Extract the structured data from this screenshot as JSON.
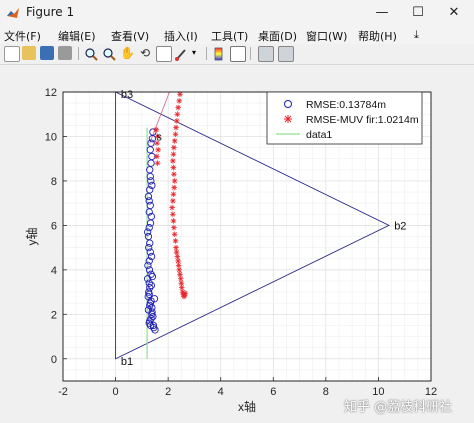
{
  "window": {
    "title": "Figure 1",
    "minimize": "—",
    "maximize": "☐",
    "close": "✕"
  },
  "menu": [
    "文件(F)",
    "编辑(E)",
    "查看(V)",
    "插入(I)",
    "工具(T)",
    "桌面(D)",
    "窗口(W)",
    "帮助(H)"
  ],
  "toolbar": [
    "new-figure",
    "open-file",
    "save",
    "print",
    "zoom-in",
    "zoom-out",
    "pan",
    "rotate-3d",
    "data-cursor",
    "brush",
    "insert-colorbar",
    "insert-legend",
    "hide-plot-tools",
    "show-plot-tools"
  ],
  "watermark": "知乎 @荔枝科研社",
  "chart_data": {
    "type": "line",
    "title": "",
    "xlabel": "x轴",
    "ylabel": "y轴",
    "xlim": [
      -2,
      12
    ],
    "ylim": [
      -1,
      12
    ],
    "xticks": [
      "-2",
      "0",
      "2",
      "4",
      "6",
      "8",
      "10",
      "12"
    ],
    "yticks": [
      "0",
      "2",
      "4",
      "6",
      "8",
      "10",
      "12"
    ],
    "grid": true,
    "legend_position": "top-right",
    "legend": [
      {
        "label": "RMSE:0.13784m",
        "marker": "circle",
        "color": "#1f1fb4"
      },
      {
        "label": "RMSE-MUV fir:1.0214m",
        "marker": "asterisk",
        "color": "#e8272d"
      },
      {
        "label": "data1",
        "marker": "line",
        "color": "#8fe08f"
      }
    ],
    "annotations": [
      {
        "text": "b1",
        "x": 0.2,
        "y": -0.1
      },
      {
        "text": "b2",
        "x": 10.6,
        "y": 6.0
      },
      {
        "text": "b3",
        "x": 0.2,
        "y": 11.9
      },
      {
        "text": "s",
        "x": 1.55,
        "y": 10.0
      }
    ],
    "anchors": {
      "b1": [
        0,
        0
      ],
      "b2": [
        10.4,
        6
      ],
      "b3": [
        0,
        12
      ]
    },
    "green_line": {
      "x": [
        1.2,
        1.2
      ],
      "y": [
        0,
        10.4
      ]
    },
    "pink_line": {
      "x": [
        1.3,
        2.05
      ],
      "y": [
        9.7,
        12
      ]
    },
    "series": [
      {
        "name": "RMSE:0.13784m",
        "marker": "circle",
        "color": "#1f1fb4",
        "x": [
          1.42,
          1.4,
          1.35,
          1.32,
          1.38,
          1.35,
          1.3,
          1.32,
          1.34,
          1.38,
          1.3,
          1.25,
          1.28,
          1.32,
          1.28,
          1.36,
          1.33,
          1.28,
          1.22,
          1.25,
          1.3,
          1.26,
          1.32,
          1.37,
          1.28,
          1.23,
          1.29,
          1.35,
          1.22,
          1.28,
          1.3,
          1.26,
          1.24,
          1.35,
          1.3,
          1.25,
          1.38,
          1.35,
          1.3,
          1.28,
          1.33,
          1.39,
          1.32,
          1.28,
          1.36,
          1.4,
          1.45,
          1.42,
          1.38,
          1.48,
          1.44,
          1.5
        ],
        "y": [
          10.2,
          9.9,
          9.7,
          9.4,
          9.1,
          8.8,
          8.5,
          8.2,
          8.0,
          7.8,
          7.6,
          7.3,
          7.1,
          6.9,
          6.6,
          6.4,
          6.1,
          5.9,
          5.7,
          5.5,
          5.2,
          5.0,
          4.8,
          4.6,
          4.4,
          4.2,
          4.0,
          3.8,
          3.6,
          3.4,
          3.2,
          3.0,
          2.8,
          2.6,
          2.4,
          2.2,
          2.0,
          1.8,
          1.7,
          1.6,
          1.5,
          2.1,
          2.5,
          2.9,
          3.3,
          3.7,
          1.4,
          1.9,
          2.3,
          2.7,
          1.5,
          1.3
        ]
      },
      {
        "name": "RMSE-MUV fir:1.0214m",
        "marker": "asterisk",
        "color": "#e8272d",
        "x": [
          2.45,
          2.42,
          2.38,
          2.35,
          2.33,
          2.3,
          2.28,
          2.25,
          2.22,
          2.2,
          2.18,
          2.2,
          2.22,
          2.25,
          2.23,
          2.2,
          2.18,
          2.15,
          2.18,
          2.2,
          2.22,
          2.25,
          2.28,
          2.3,
          2.32,
          2.35,
          2.38,
          2.4,
          2.42,
          2.45,
          2.48,
          2.5,
          2.52,
          2.55,
          2.58,
          2.6,
          2.62,
          2.65,
          1.55,
          1.6,
          1.58,
          1.62,
          1.57,
          1.6
        ],
        "y": [
          11.9,
          11.6,
          11.3,
          11.0,
          10.7,
          10.4,
          10.1,
          9.8,
          9.5,
          9.2,
          8.9,
          8.6,
          8.3,
          8.0,
          7.7,
          7.4,
          7.1,
          6.8,
          6.5,
          6.2,
          5.9,
          5.6,
          5.3,
          5.0,
          4.8,
          4.6,
          4.4,
          4.2,
          4.0,
          3.8,
          3.6,
          3.4,
          3.2,
          3.0,
          2.9,
          2.8,
          2.85,
          2.95,
          10.3,
          10.0,
          9.7,
          9.4,
          9.1,
          8.8
        ]
      }
    ]
  }
}
